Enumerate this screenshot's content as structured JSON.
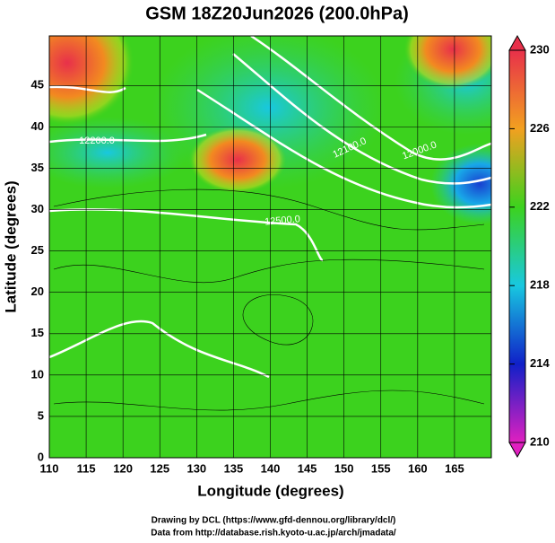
{
  "chart_data": {
    "type": "map",
    "title": "GSM 18Z20Jun2026 (200.0hPa)",
    "xlabel": "Longitude (degrees)",
    "ylabel": "Latitude  (degrees)",
    "xlim": [
      110,
      170
    ],
    "ylim": [
      0,
      51
    ],
    "xticks": [
      110,
      115,
      120,
      125,
      130,
      135,
      140,
      145,
      150,
      155,
      160,
      165
    ],
    "yticks": [
      0,
      5,
      10,
      15,
      20,
      25,
      30,
      35,
      40,
      45
    ],
    "grid": true,
    "colorbar": {
      "range": [
        210,
        230
      ],
      "ticks": [
        230,
        226,
        222,
        218,
        214,
        210
      ],
      "colors": [
        "#e8304a",
        "#f2a020",
        "#3cd21e",
        "#18c8e0",
        "#1020c8",
        "#e020c0"
      ]
    },
    "contour_labels": [
      "12000.0",
      "12100.0",
      "12200.0",
      "12500.0"
    ],
    "credits": [
      "Drawing by DCL (https://www.gfd-dennou.org/library/dcl/)",
      "Data from http://database.rish.kyoto-u.ac.jp/arch/jmadata/"
    ]
  }
}
